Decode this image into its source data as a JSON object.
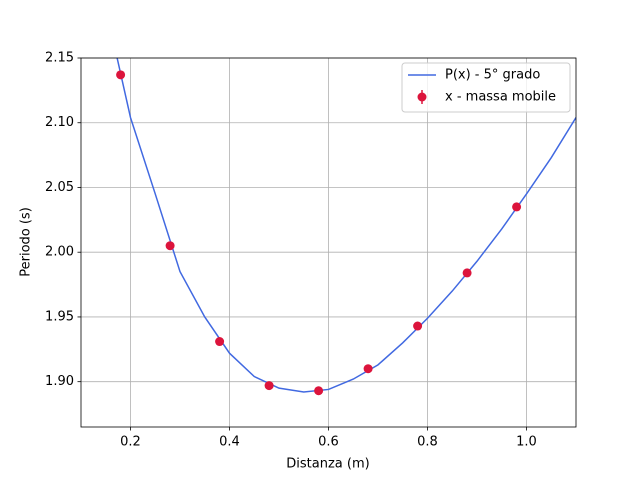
{
  "chart_data": {
    "type": "line",
    "xlabel": "Distanza (m)",
    "ylabel": "Periodo (s)",
    "xlim": [
      0.1,
      1.1
    ],
    "ylim": [
      1.865,
      2.15
    ],
    "xticks": [
      0.2,
      0.4,
      0.6,
      0.8,
      {
        "value": 1,
        "label": "1.0"
      }
    ],
    "yticks": [
      {
        "value": 1.9,
        "label": "1.90"
      },
      1.95,
      {
        "value": 2,
        "label": "2.00"
      },
      2.05,
      {
        "value": 2.1,
        "label": "2.10"
      },
      2.15
    ],
    "grid": true,
    "legend": "upper right",
    "series": [
      {
        "name": "P(x) - 5° grado",
        "type": "line",
        "color": "#4169e1",
        "x": [
          0.173,
          0.2,
          0.25,
          0.3,
          0.35,
          0.4,
          0.45,
          0.5,
          0.55,
          0.6,
          0.65,
          0.7,
          0.75,
          0.8,
          0.85,
          0.9,
          0.95,
          1.0,
          1.05,
          1.1
        ],
        "values": [
          2.15,
          2.104,
          2.045,
          1.985,
          1.95,
          1.922,
          1.904,
          1.895,
          1.892,
          1.894,
          1.902,
          1.913,
          1.93,
          1.949,
          1.97,
          1.993,
          2.018,
          2.045,
          2.073,
          2.104
        ]
      },
      {
        "name": "x - massa mobile",
        "type": "errorbar",
        "color": "#dc143c",
        "x": [
          0.18,
          0.28,
          0.38,
          0.48,
          0.58,
          0.68,
          0.78,
          0.88,
          0.98
        ],
        "values": [
          2.137,
          2.005,
          1.931,
          1.897,
          1.893,
          1.91,
          1.943,
          1.984,
          2.035
        ]
      }
    ]
  }
}
